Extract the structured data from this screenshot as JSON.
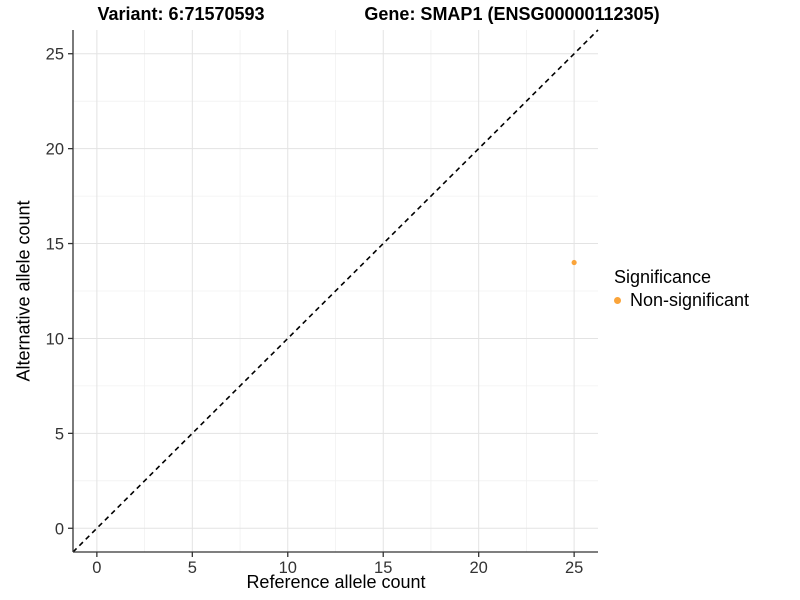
{
  "titles": {
    "variant": "Variant: 6:71570593",
    "gene": "Gene: SMAP1 (ENSG00000112305)"
  },
  "axes": {
    "x_label": "Reference allele count",
    "y_label": "Alternative allele count"
  },
  "legend": {
    "title": "Significance",
    "items": [
      {
        "label": "Non-significant",
        "color": "#FAA43A",
        "marker": "circle-icon"
      }
    ]
  },
  "colors": {
    "background": "#FFFFFF",
    "point": "#FAA43A",
    "grid_major": "#E3E3E3",
    "grid_minor": "#F1F1F1",
    "axis": "#333333",
    "tick_label": "#333333",
    "identity_line": "#000000"
  },
  "chart_data": {
    "type": "scatter",
    "title": "Variant: 6:71570593 | Gene: SMAP1 (ENSG00000112305)",
    "xlabel": "Reference allele count",
    "ylabel": "Alternative allele count",
    "xlim": [
      -1.25,
      26.25
    ],
    "ylim": [
      -1.25,
      26.25
    ],
    "x_ticks": [
      0,
      5,
      10,
      15,
      20,
      25
    ],
    "y_ticks": [
      0,
      5,
      10,
      15,
      20,
      25
    ],
    "x_minor_ticks": [
      2.5,
      7.5,
      12.5,
      17.5,
      22.5
    ],
    "y_minor_ticks": [
      2.5,
      7.5,
      12.5,
      17.5,
      22.5
    ],
    "grid": true,
    "legend_position": "right",
    "reference_line": {
      "type": "identity y=x",
      "style": "dashed",
      "color": "#000000"
    },
    "series": [
      {
        "name": "Non-significant",
        "color": "#FAA43A",
        "points": [
          {
            "x": 25,
            "y": 14
          }
        ]
      }
    ]
  }
}
